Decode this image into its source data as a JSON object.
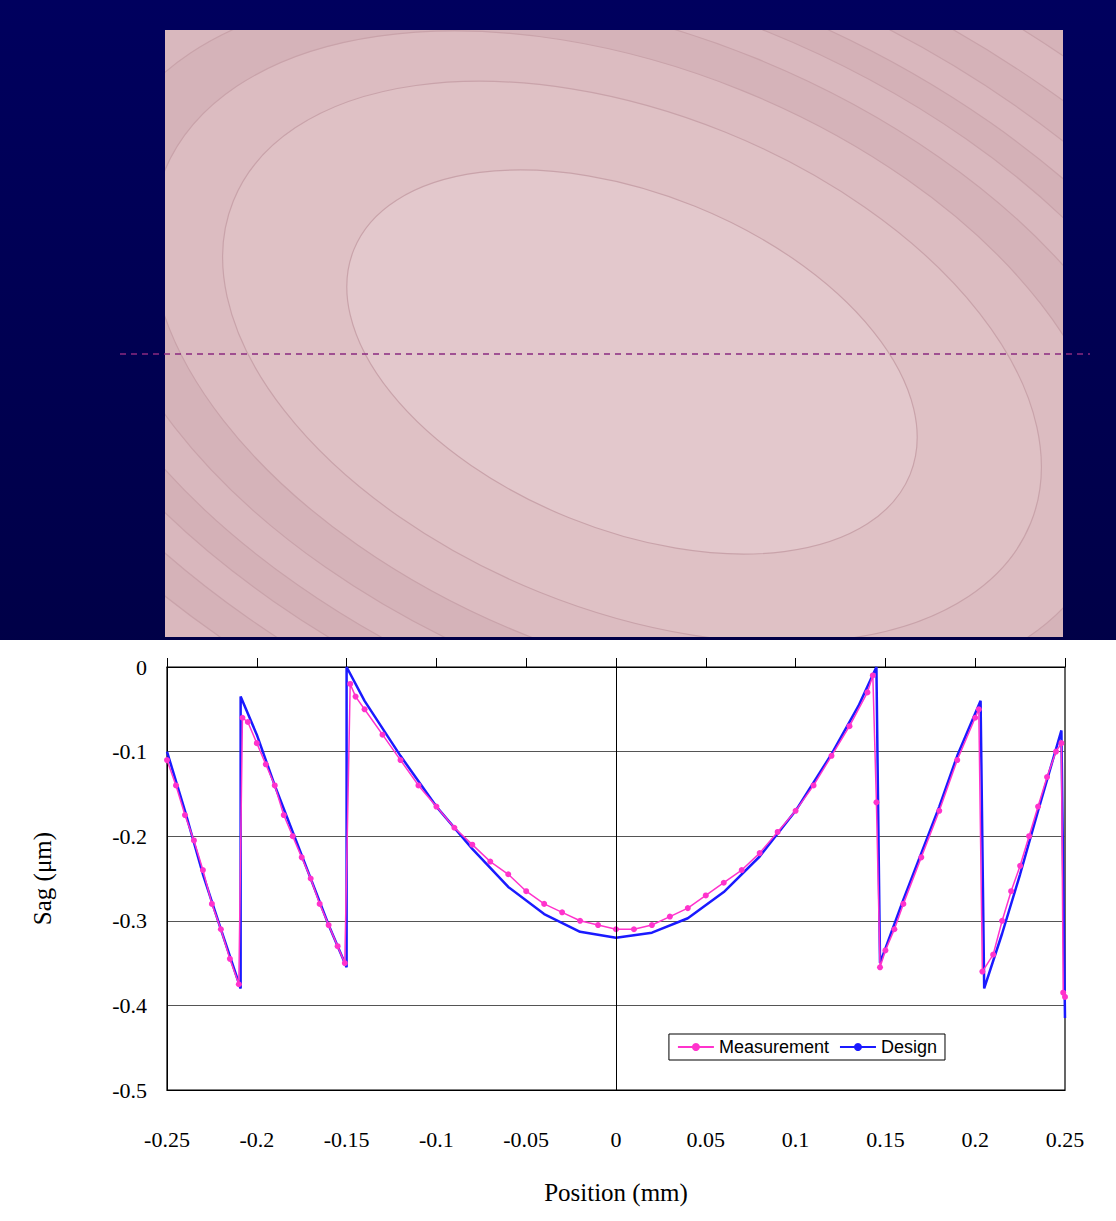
{
  "chart_data": {
    "type": "line",
    "x_label": "Position (mm)",
    "y_label": "Sag (μm)",
    "xlim": [
      -0.25,
      0.25
    ],
    "xticks": [
      -0.25,
      -0.2,
      -0.15,
      -0.1,
      -0.05,
      0,
      0.05,
      0.1,
      0.15,
      0.2,
      0.25
    ],
    "ylim": [
      -0.5,
      0
    ],
    "yticks": [
      -0.5,
      -0.4,
      -0.3,
      -0.2,
      -0.1,
      0
    ],
    "grid": true,
    "legend": "lower right",
    "series": [
      {
        "name": "Measurement",
        "color": "#ff33cc",
        "marker": "circle",
        "line_style": "solid",
        "x": [
          -0.25,
          -0.245,
          -0.24,
          -0.235,
          -0.23,
          -0.225,
          -0.22,
          -0.215,
          -0.21,
          -0.208,
          -0.205,
          -0.2,
          -0.195,
          -0.19,
          -0.185,
          -0.18,
          -0.175,
          -0.17,
          -0.165,
          -0.16,
          -0.155,
          -0.151,
          -0.148,
          -0.145,
          -0.14,
          -0.13,
          -0.12,
          -0.11,
          -0.1,
          -0.09,
          -0.08,
          -0.07,
          -0.06,
          -0.05,
          -0.04,
          -0.03,
          -0.02,
          -0.01,
          0,
          0.01,
          0.02,
          0.03,
          0.04,
          0.05,
          0.06,
          0.07,
          0.08,
          0.09,
          0.1,
          0.11,
          0.12,
          0.13,
          0.14,
          0.143,
          0.145,
          0.147,
          0.15,
          0.155,
          0.16,
          0.17,
          0.18,
          0.19,
          0.2,
          0.202,
          0.204,
          0.21,
          0.215,
          0.22,
          0.225,
          0.23,
          0.235,
          0.24,
          0.245,
          0.248,
          0.249,
          0.25
        ],
        "values": [
          -0.11,
          -0.14,
          -0.175,
          -0.205,
          -0.24,
          -0.28,
          -0.31,
          -0.345,
          -0.375,
          -0.06,
          -0.065,
          -0.09,
          -0.115,
          -0.14,
          -0.175,
          -0.2,
          -0.225,
          -0.25,
          -0.28,
          -0.305,
          -0.33,
          -0.35,
          -0.02,
          -0.035,
          -0.05,
          -0.08,
          -0.11,
          -0.14,
          -0.165,
          -0.19,
          -0.21,
          -0.23,
          -0.245,
          -0.265,
          -0.28,
          -0.29,
          -0.3,
          -0.305,
          -0.31,
          -0.31,
          -0.305,
          -0.295,
          -0.285,
          -0.27,
          -0.255,
          -0.24,
          -0.22,
          -0.195,
          -0.17,
          -0.14,
          -0.105,
          -0.07,
          -0.03,
          -0.01,
          -0.16,
          -0.355,
          -0.335,
          -0.31,
          -0.28,
          -0.225,
          -0.17,
          -0.11,
          -0.06,
          -0.05,
          -0.36,
          -0.34,
          -0.3,
          -0.265,
          -0.235,
          -0.2,
          -0.165,
          -0.13,
          -0.1,
          -0.09,
          -0.385,
          -0.39
        ]
      },
      {
        "name": "Design",
        "color": "#1a1aff",
        "marker": "none",
        "line_style": "solid",
        "x": [
          -0.25,
          -0.24,
          -0.23,
          -0.22,
          -0.209,
          -0.209,
          -0.2,
          -0.19,
          -0.18,
          -0.17,
          -0.16,
          -0.15,
          -0.15,
          -0.14,
          -0.12,
          -0.1,
          -0.08,
          -0.06,
          -0.04,
          -0.02,
          0,
          0.02,
          0.04,
          0.06,
          0.08,
          0.1,
          0.12,
          0.135,
          0.145,
          0.147,
          0.16,
          0.17,
          0.18,
          0.19,
          0.203,
          0.205,
          0.215,
          0.225,
          0.235,
          0.248,
          0.25
        ],
        "values": [
          -0.1,
          -0.17,
          -0.245,
          -0.31,
          -0.38,
          -0.035,
          -0.08,
          -0.14,
          -0.195,
          -0.25,
          -0.305,
          -0.355,
          0,
          -0.04,
          -0.105,
          -0.165,
          -0.215,
          -0.26,
          -0.292,
          -0.313,
          -0.32,
          -0.314,
          -0.297,
          -0.266,
          -0.224,
          -0.17,
          -0.103,
          -0.046,
          0,
          -0.35,
          -0.275,
          -0.22,
          -0.165,
          -0.105,
          -0.04,
          -0.38,
          -0.315,
          -0.245,
          -0.17,
          -0.075,
          -0.415
        ]
      }
    ]
  }
}
